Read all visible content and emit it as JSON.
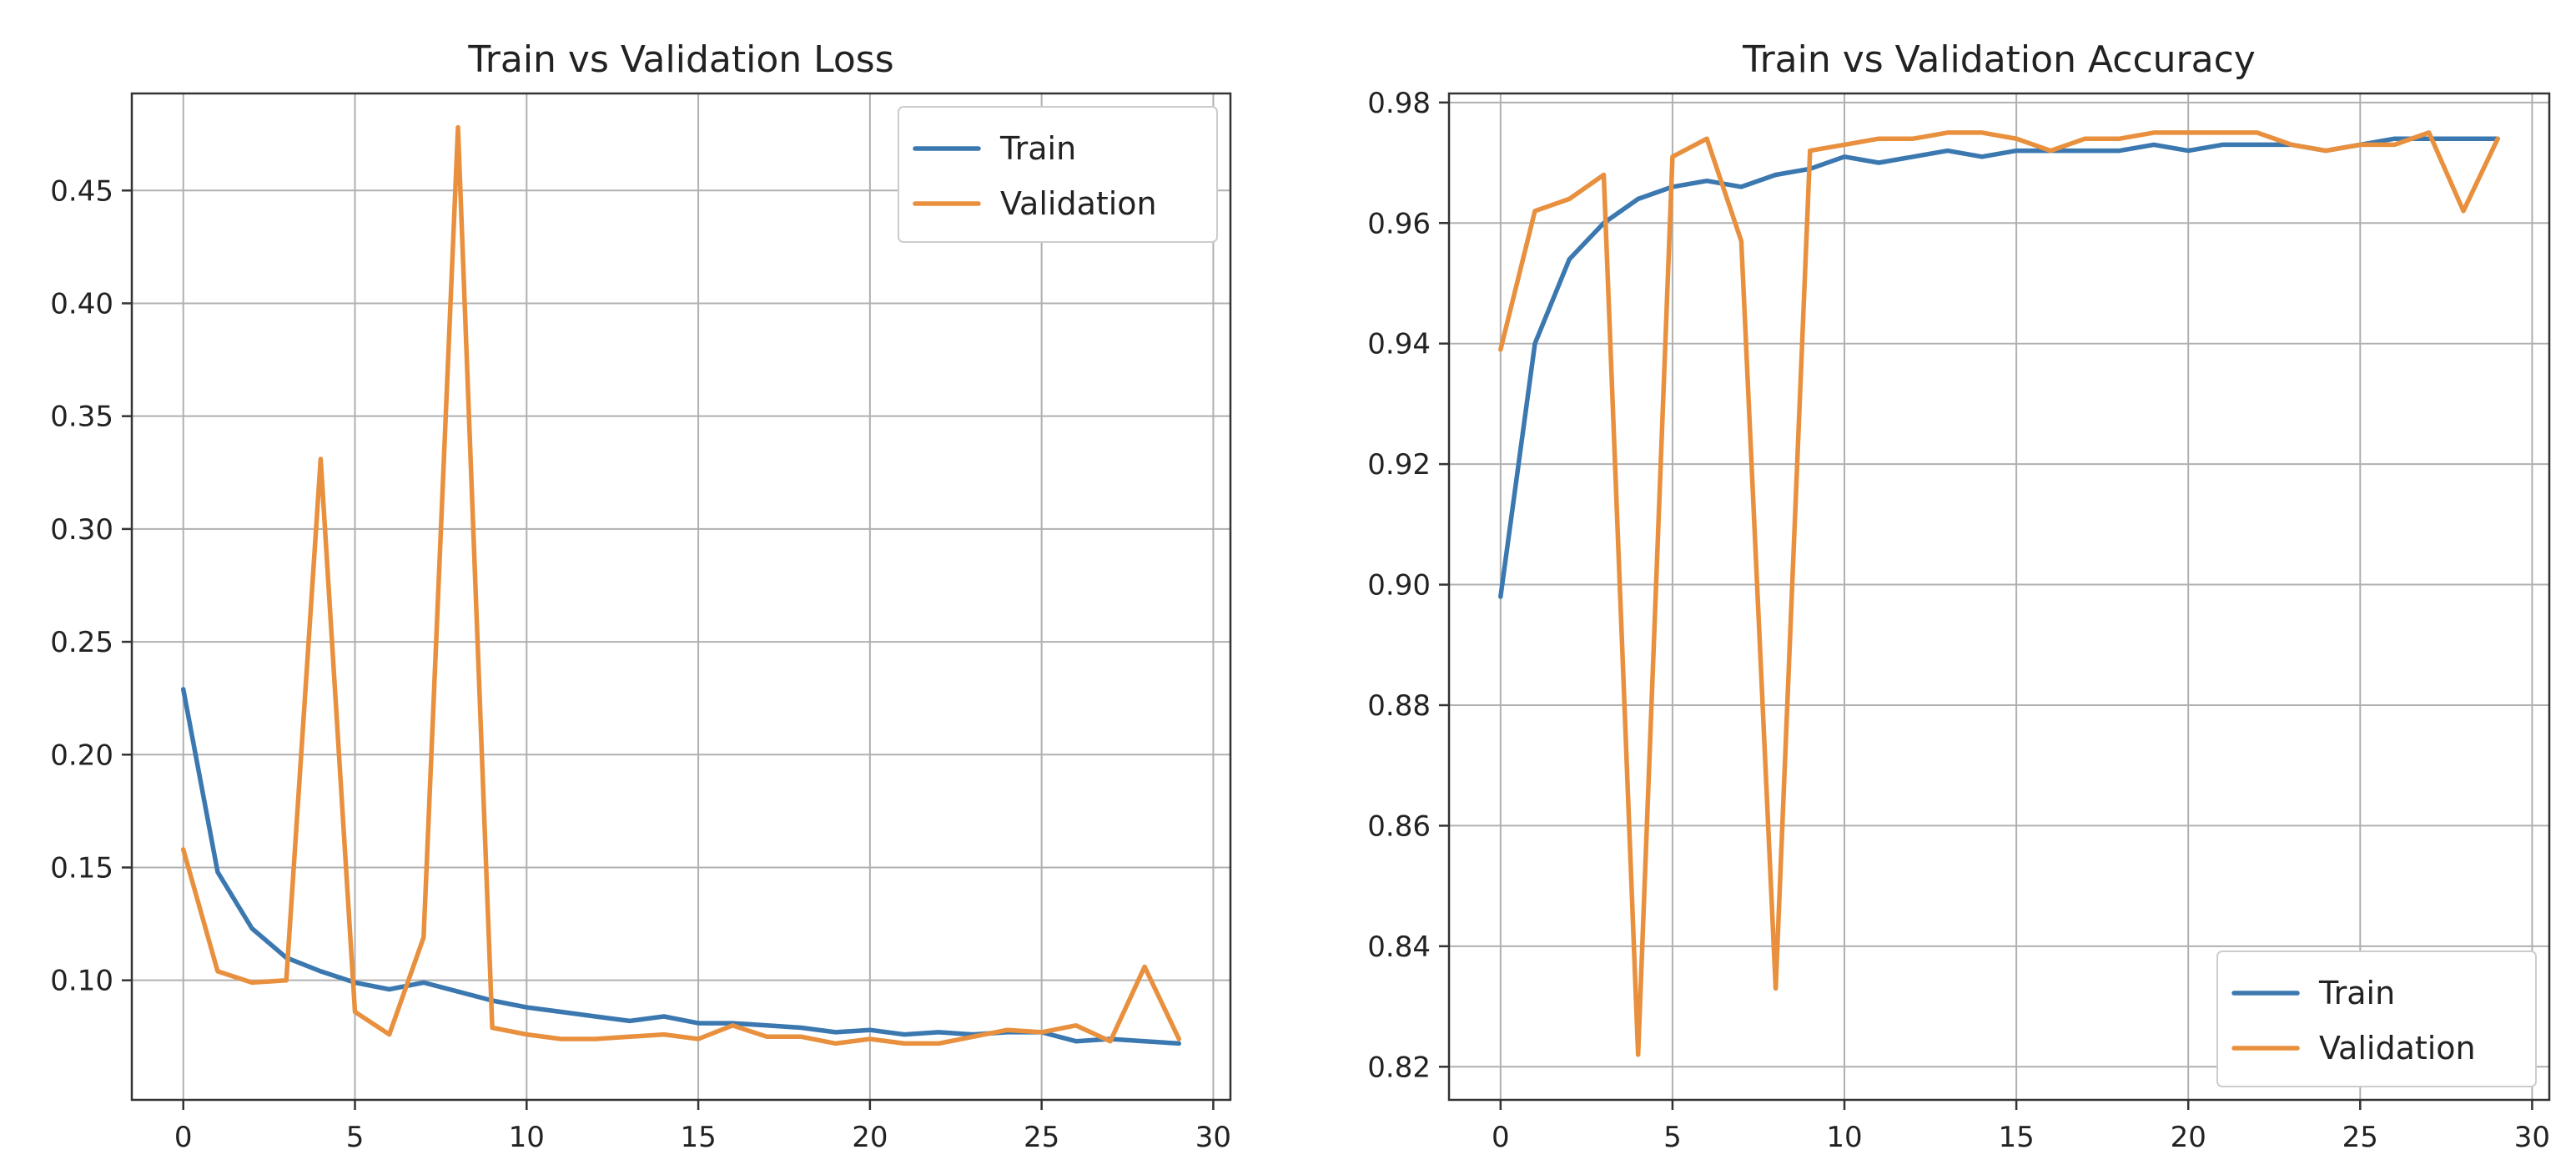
{
  "colors": {
    "train": "#3b78b0",
    "validation": "#e8903e"
  },
  "chart_data": [
    {
      "type": "line",
      "title": "Train vs Validation Loss",
      "xlabel": "",
      "ylabel": "",
      "xlim": [
        -1.5,
        30.5
      ],
      "ylim": [
        0.047,
        0.493
      ],
      "xticks": [
        0,
        5,
        10,
        15,
        20,
        25,
        30
      ],
      "xtick_labels": [
        "0",
        "5",
        "10",
        "15",
        "20",
        "25",
        "30"
      ],
      "yticks": [
        0.1,
        0.15,
        0.2,
        0.25,
        0.3,
        0.35,
        0.4,
        0.45
      ],
      "ytick_labels": [
        "0.10",
        "0.15",
        "0.20",
        "0.25",
        "0.30",
        "0.35",
        "0.40",
        "0.45"
      ],
      "legend_position": "top-right",
      "x": [
        0,
        1,
        2,
        3,
        4,
        5,
        6,
        7,
        8,
        9,
        10,
        11,
        12,
        13,
        14,
        15,
        16,
        17,
        18,
        19,
        20,
        21,
        22,
        23,
        24,
        25,
        26,
        27,
        28,
        29
      ],
      "series": [
        {
          "name": "Train",
          "color_key": "train",
          "values": [
            0.229,
            0.148,
            0.123,
            0.11,
            0.104,
            0.099,
            0.096,
            0.099,
            0.095,
            0.091,
            0.088,
            0.086,
            0.084,
            0.082,
            0.084,
            0.081,
            0.081,
            0.08,
            0.079,
            0.077,
            0.078,
            0.076,
            0.077,
            0.076,
            0.077,
            0.077,
            0.073,
            0.074,
            0.073,
            0.072
          ]
        },
        {
          "name": "Validation",
          "color_key": "validation",
          "values": [
            0.158,
            0.104,
            0.099,
            0.1,
            0.331,
            0.086,
            0.076,
            0.119,
            0.478,
            0.079,
            0.076,
            0.074,
            0.074,
            0.075,
            0.076,
            0.074,
            0.08,
            0.075,
            0.075,
            0.072,
            0.074,
            0.072,
            0.072,
            0.075,
            0.078,
            0.077,
            0.08,
            0.073,
            0.106,
            0.074
          ]
        }
      ]
    },
    {
      "type": "line",
      "title": "Train vs Validation Accuracy",
      "xlabel": "",
      "ylabel": "",
      "xlim": [
        -1.5,
        30.5
      ],
      "ylim": [
        0.8145,
        0.9815
      ],
      "xticks": [
        0,
        5,
        10,
        15,
        20,
        25,
        30
      ],
      "xtick_labels": [
        "0",
        "5",
        "10",
        "15",
        "20",
        "25",
        "30"
      ],
      "yticks": [
        0.82,
        0.84,
        0.86,
        0.88,
        0.9,
        0.92,
        0.94,
        0.96,
        0.98
      ],
      "ytick_labels": [
        "0.82",
        "0.84",
        "0.86",
        "0.88",
        "0.90",
        "0.92",
        "0.94",
        "0.96",
        "0.98"
      ],
      "legend_position": "bottom-right",
      "x": [
        0,
        1,
        2,
        3,
        4,
        5,
        6,
        7,
        8,
        9,
        10,
        11,
        12,
        13,
        14,
        15,
        16,
        17,
        18,
        19,
        20,
        21,
        22,
        23,
        24,
        25,
        26,
        27,
        28,
        29
      ],
      "series": [
        {
          "name": "Train",
          "color_key": "train",
          "values": [
            0.898,
            0.94,
            0.954,
            0.96,
            0.964,
            0.966,
            0.967,
            0.966,
            0.968,
            0.969,
            0.971,
            0.97,
            0.971,
            0.972,
            0.971,
            0.972,
            0.972,
            0.972,
            0.972,
            0.973,
            0.972,
            0.973,
            0.973,
            0.973,
            0.972,
            0.973,
            0.974,
            0.974,
            0.974,
            0.974
          ]
        },
        {
          "name": "Validation",
          "color_key": "validation",
          "values": [
            0.939,
            0.962,
            0.964,
            0.968,
            0.822,
            0.971,
            0.974,
            0.957,
            0.833,
            0.972,
            0.973,
            0.974,
            0.974,
            0.975,
            0.975,
            0.974,
            0.972,
            0.974,
            0.974,
            0.975,
            0.975,
            0.975,
            0.975,
            0.973,
            0.972,
            0.973,
            0.973,
            0.975,
            0.962,
            0.974
          ]
        }
      ]
    }
  ]
}
